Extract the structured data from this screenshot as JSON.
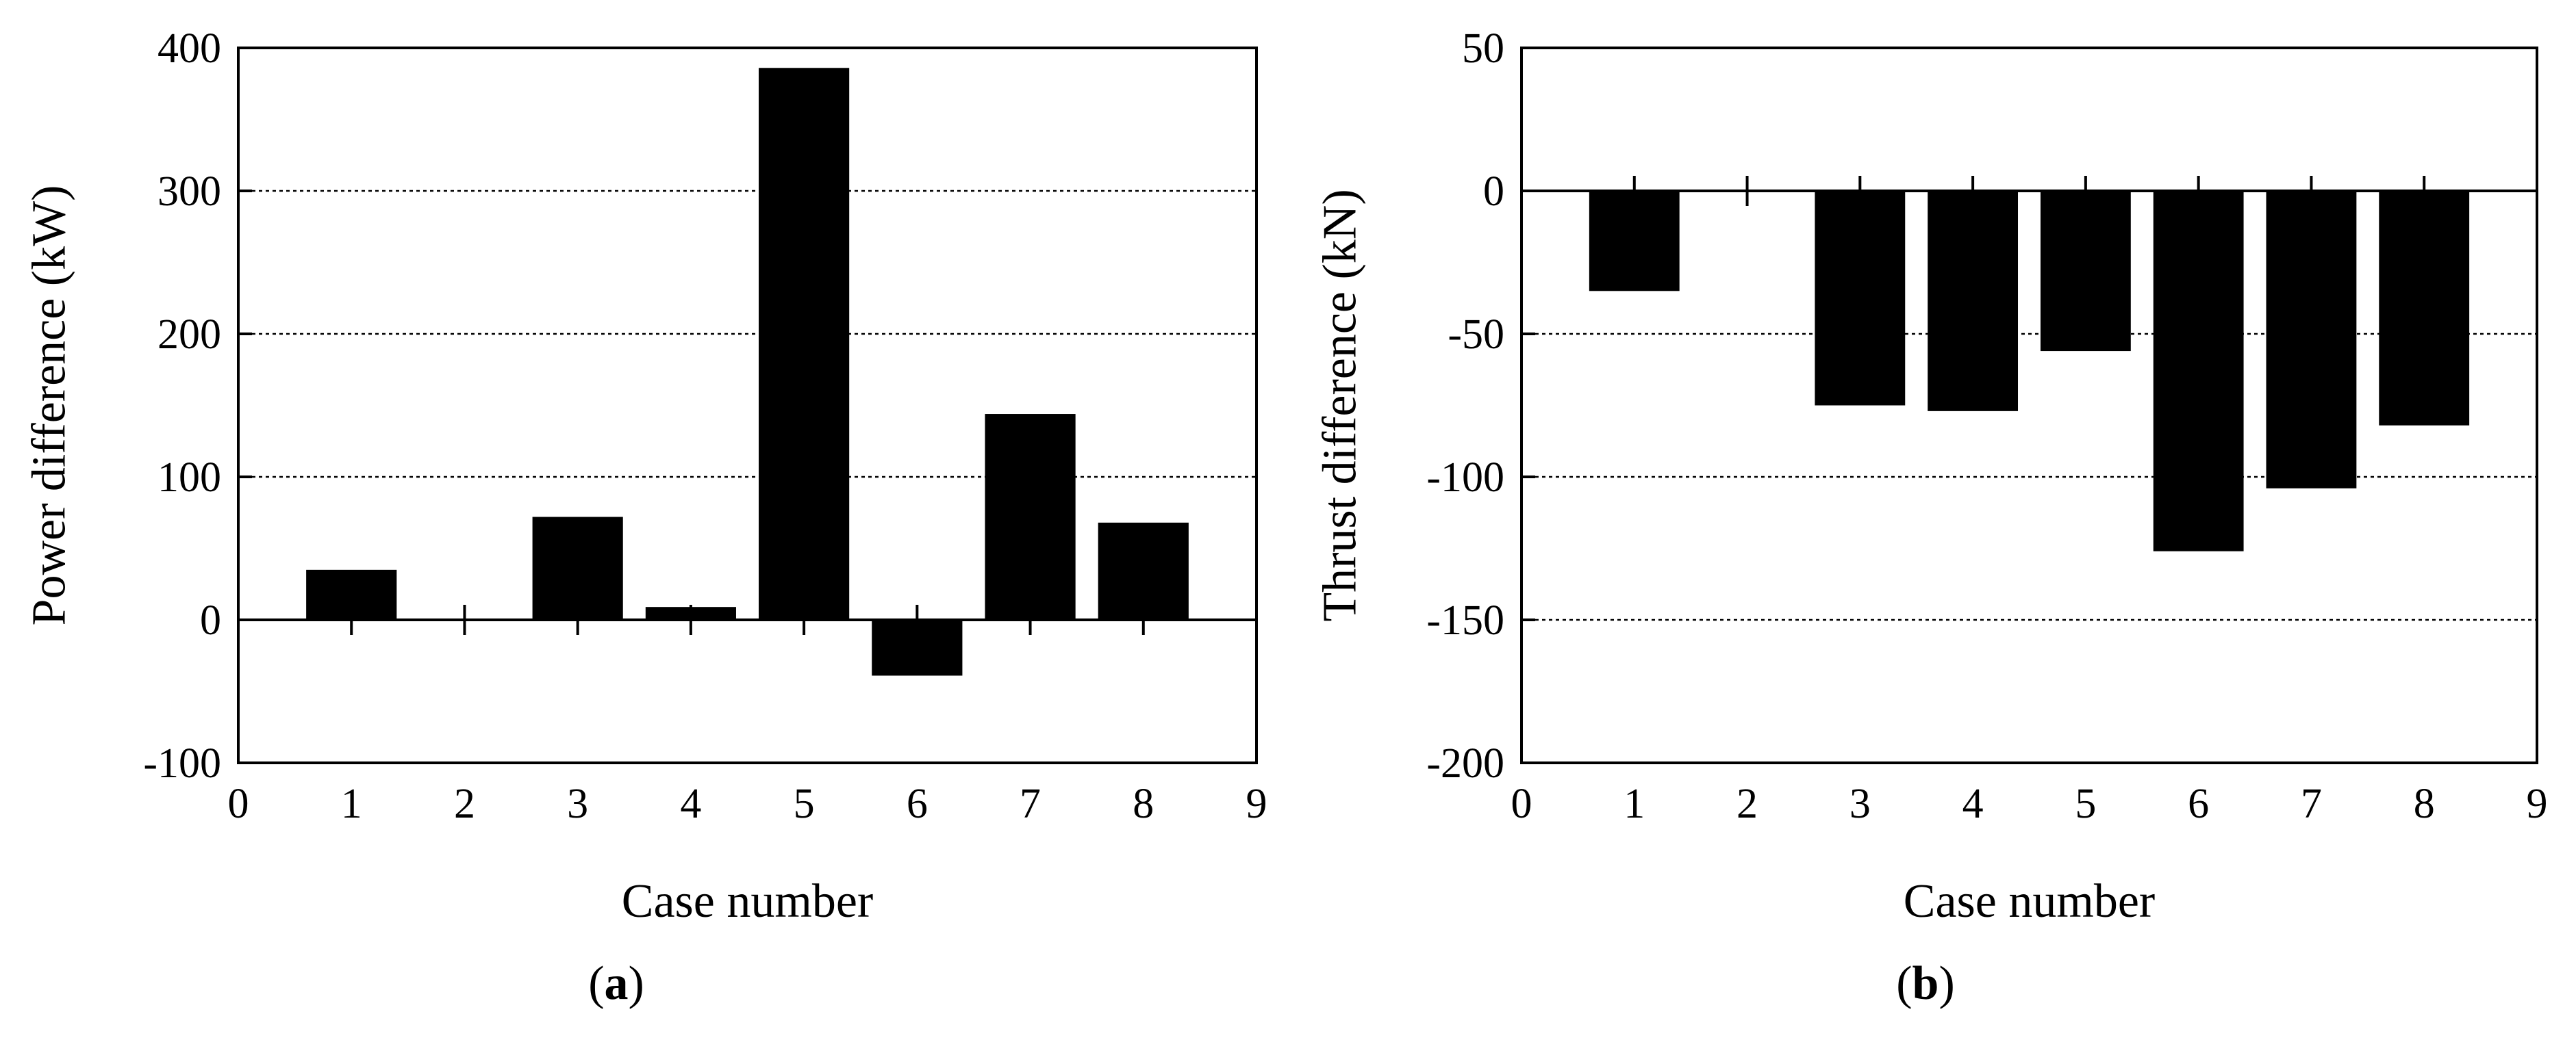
{
  "chart_data": [
    {
      "type": "bar",
      "panel_label": "a",
      "xlabel": "Case number",
      "ylabel": "Power difference (kW)",
      "xlim": [
        0,
        9
      ],
      "ylim": [
        -100,
        400
      ],
      "xticks": [
        0,
        1,
        2,
        3,
        4,
        5,
        6,
        7,
        8,
        9
      ],
      "yticks": [
        -100,
        0,
        100,
        200,
        300,
        400
      ],
      "grid": "horizontal dotted",
      "bar_color": "#000000",
      "x": [
        1,
        2,
        3,
        4,
        5,
        6,
        7,
        8
      ],
      "values": [
        35,
        0,
        72,
        9,
        386,
        -39,
        144,
        68
      ]
    },
    {
      "type": "bar",
      "panel_label": "b",
      "xlabel": "Case number",
      "ylabel": "Thrust difference (kN)",
      "xlim": [
        0,
        9
      ],
      "ylim": [
        -200,
        50
      ],
      "xticks": [
        0,
        1,
        2,
        3,
        4,
        5,
        6,
        7,
        8,
        9
      ],
      "yticks": [
        -200,
        -150,
        -100,
        -50,
        0,
        50
      ],
      "grid": "horizontal dotted",
      "bar_color": "#000000",
      "x": [
        1,
        2,
        3,
        4,
        5,
        6,
        7,
        8
      ],
      "values": [
        -35,
        0,
        -75,
        -77,
        -56,
        -126,
        -104,
        -82
      ]
    }
  ],
  "panels": [
    {
      "open": "(",
      "letter": "a",
      "close": ")"
    },
    {
      "open": "(",
      "letter": "b",
      "close": ")"
    }
  ]
}
